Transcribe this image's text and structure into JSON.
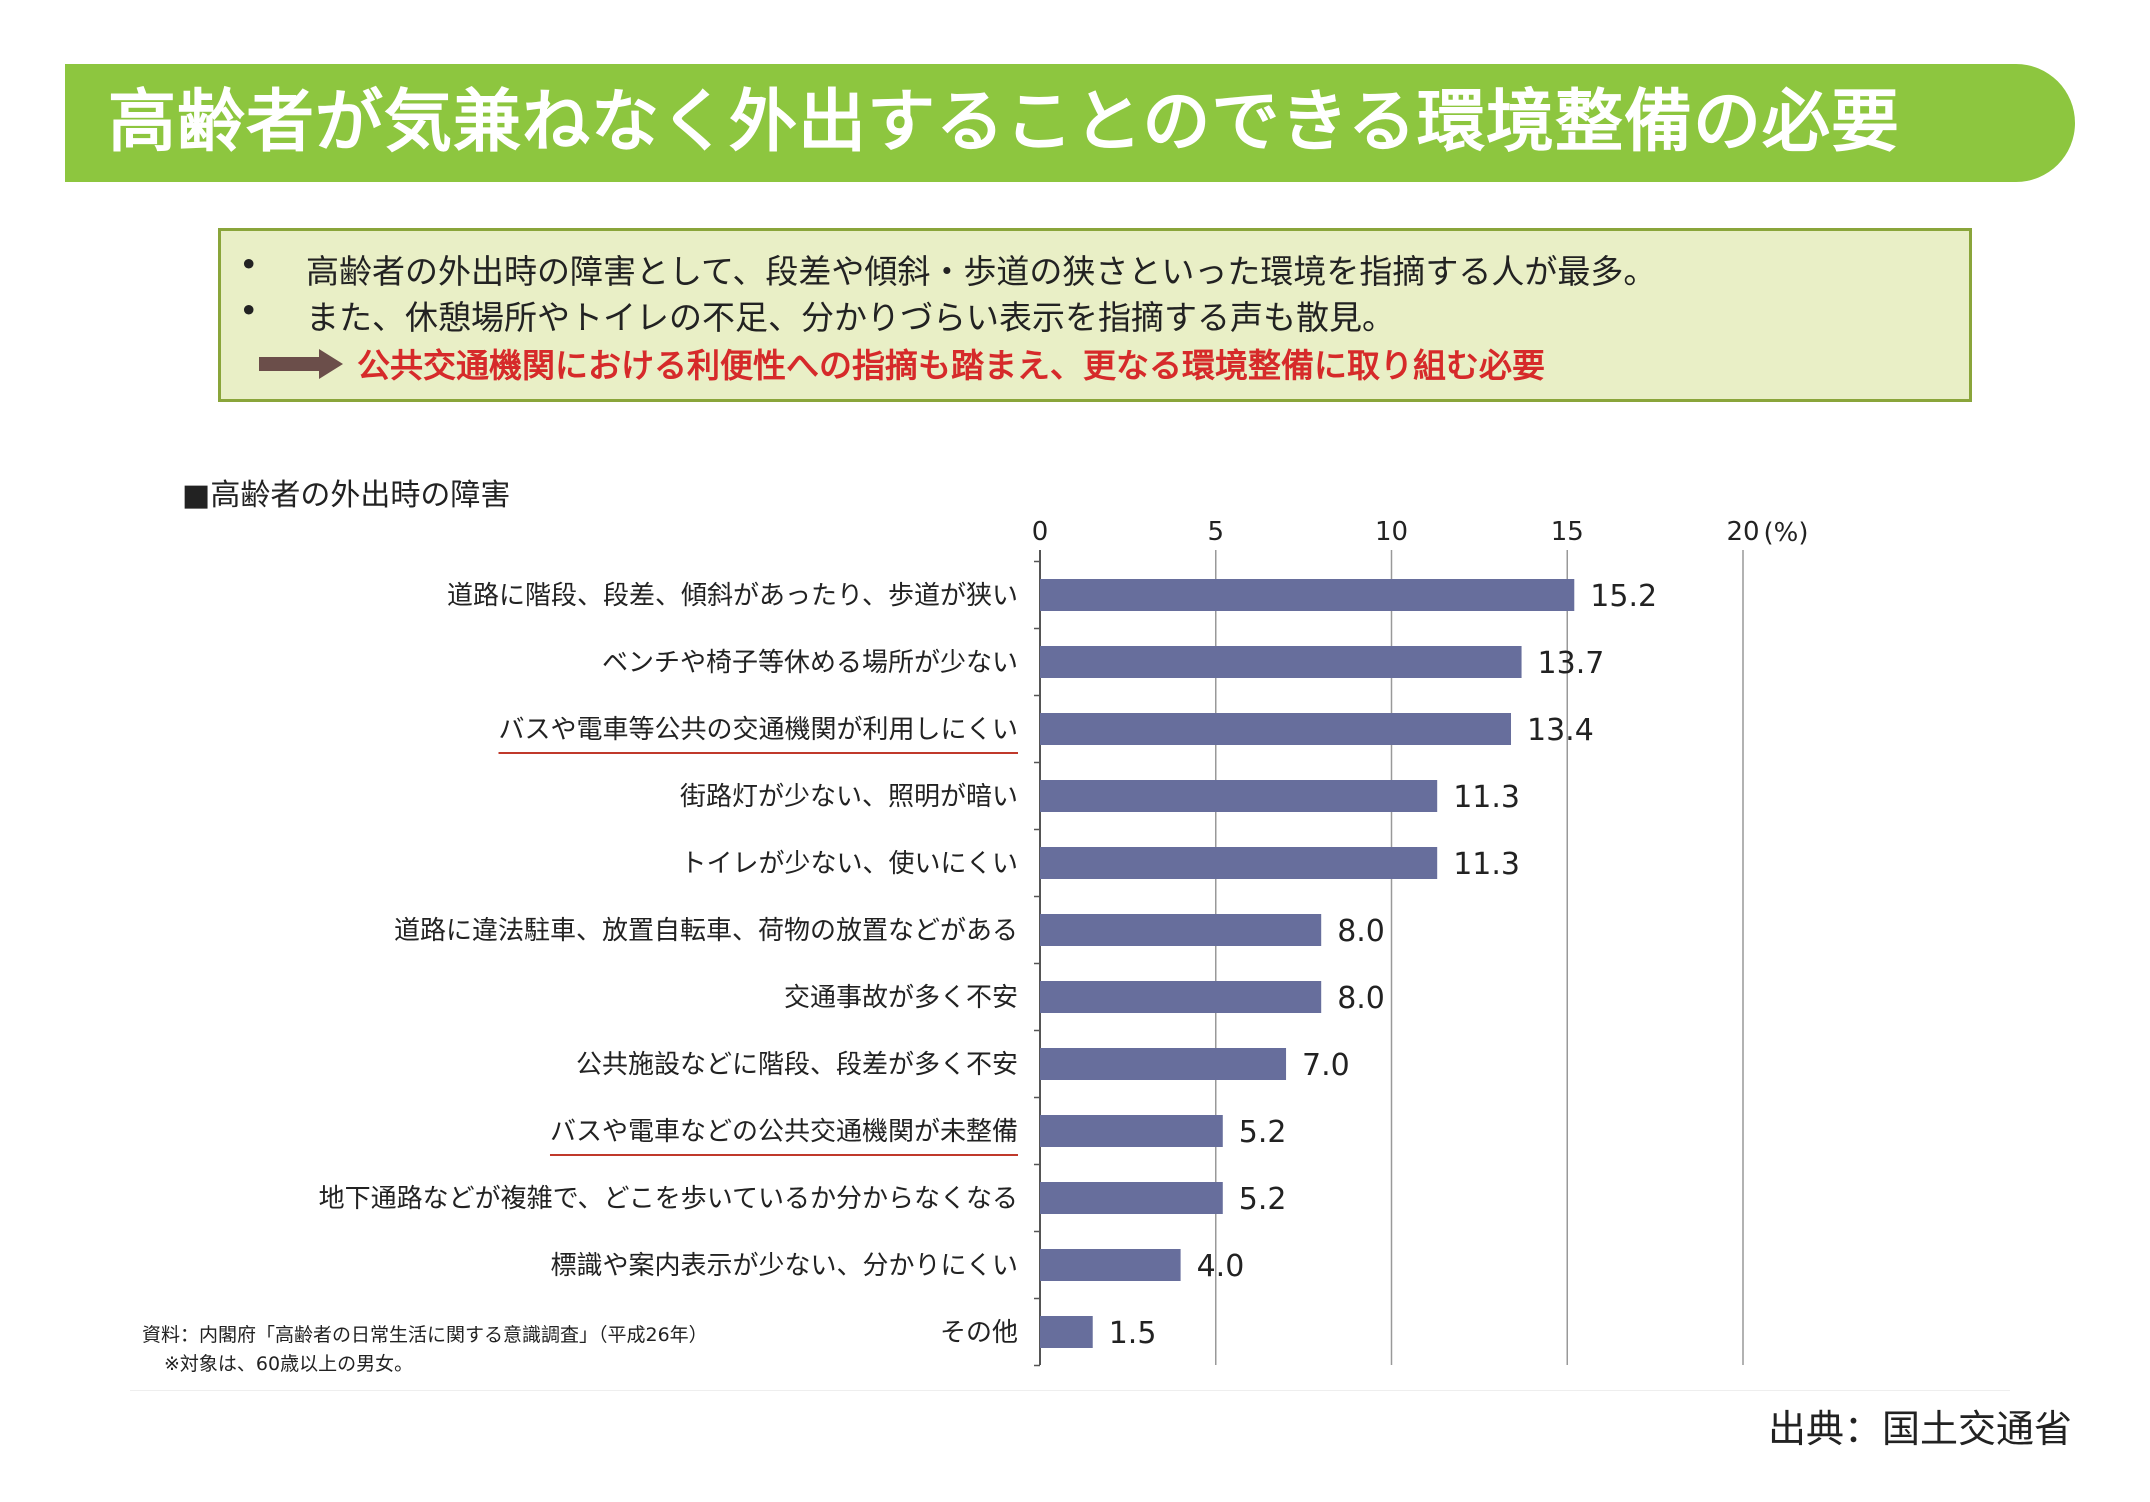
{
  "header": {
    "title": "高齢者が気兼ねなく外出することのできる環境整備の必要"
  },
  "summary": {
    "bullet_symbol": "•",
    "bullets": [
      "高齢者の外出時の障害として、段差や傾斜・歩道の狭さといった環境を指摘する人が最多。",
      "また、休憩場所やトイレの不足、分かりづらい表示を指摘する声も散見。"
    ],
    "conclusion": "公共交通機関における利便性への指摘も踏まえ、更なる環境整備に取り組む必要"
  },
  "chart_data": {
    "type": "bar",
    "orientation": "horizontal",
    "title": "■高齢者の外出時の障害",
    "unit_label": "(%)",
    "xlim": [
      0,
      20
    ],
    "ticks": [
      0,
      5,
      10,
      15,
      20
    ],
    "grid": true,
    "bar_color": "#676e9c",
    "highlight_underline_color": "#c0392b",
    "categories": [
      "道路に階段、段差、傾斜があったり、歩道が狭い",
      "ベンチや椅子等休める場所が少ない",
      "バスや電車等公共の交通機関が利用しにくい",
      "街路灯が少ない、照明が暗い",
      "トイレが少ない、使いにくい",
      "道路に違法駐車、放置自転車、荷物の放置などがある",
      "交通事故が多く不安",
      "公共施設などに階段、段差が多く不安",
      "バスや電車などの公共交通機関が未整備",
      "地下通路などが複雑で、どこを歩いているか分からなくなる",
      "標識や案内表示が少ない、分かりにくい",
      "その他"
    ],
    "values": [
      15.2,
      13.7,
      13.4,
      11.3,
      11.3,
      8.0,
      8.0,
      7.0,
      5.2,
      5.2,
      4.0,
      1.5
    ],
    "value_labels": [
      "15.2",
      "13.7",
      "13.4",
      "11.3",
      "11.3",
      "8.0",
      "8.0",
      "7.0",
      "5.2",
      "5.2",
      "4.0",
      "1.5"
    ],
    "underlined": [
      2,
      8
    ]
  },
  "notes": {
    "line1": "資料：内閣府「高齢者の日常生活に関する意識調査」（平成26年）",
    "line2": "※対象は、60歳以上の男女。"
  },
  "footer": {
    "source": "出典：国土交通省"
  }
}
